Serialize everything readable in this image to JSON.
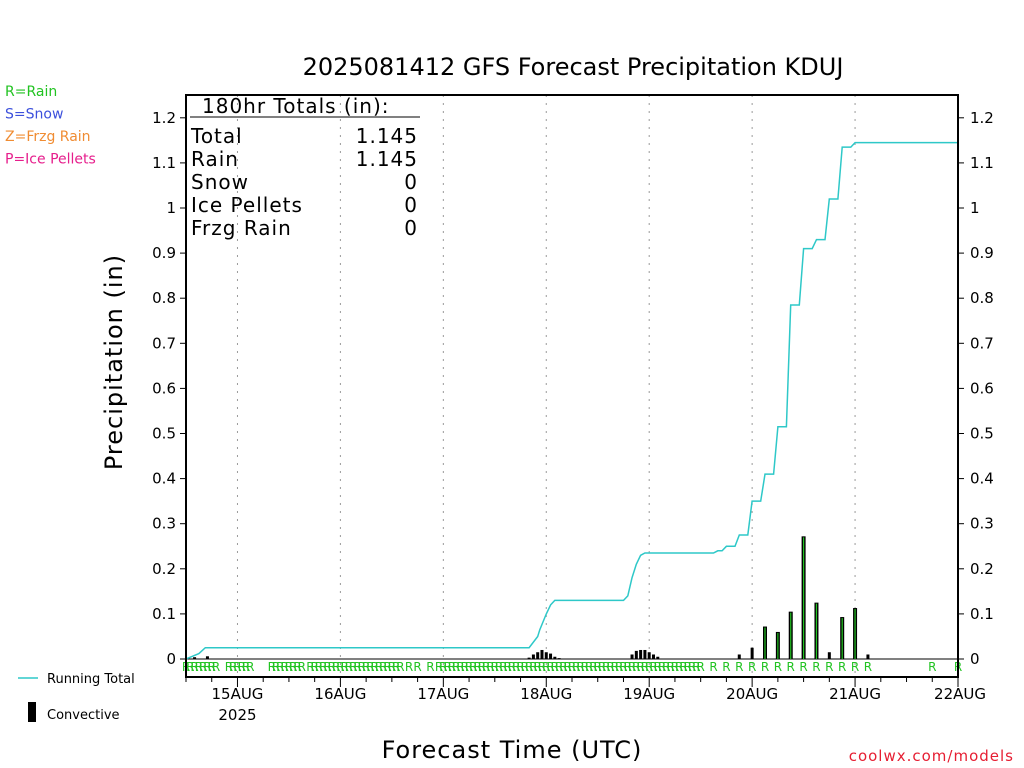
{
  "chart_data": {
    "type": "bar",
    "title": "2025081412 GFS Forecast Precipitation KDUJ",
    "xlabel": "Forecast Time (UTC)",
    "ylabel": "Precipitation (in)",
    "ylim": [
      0,
      1.25
    ],
    "y_ticks": [
      "0",
      "0.1",
      "0.2",
      "0.3",
      "0.4",
      "0.5",
      "0.6",
      "0.7",
      "0.8",
      "0.9",
      "1",
      "1.1",
      "1.2"
    ],
    "x_range_hours": [
      0,
      180
    ],
    "x_ticks": [
      {
        "hour": 12,
        "label": "15AUG",
        "sublabel": "2025"
      },
      {
        "hour": 36,
        "label": "16AUG"
      },
      {
        "hour": 60,
        "label": "17AUG"
      },
      {
        "hour": 84,
        "label": "18AUG"
      },
      {
        "hour": 108,
        "label": "19AUG"
      },
      {
        "hour": 132,
        "label": "20AUG"
      },
      {
        "hour": 156,
        "label": "21AUG"
      },
      {
        "hour": 180,
        "label": "22AUG"
      }
    ],
    "grid": "vertical-dotted",
    "legend_left": [
      {
        "text": "R=Rain",
        "color": "#22c322"
      },
      {
        "text": "S=Snow",
        "color": "#3c50dc"
      },
      {
        "text": "Z=Frzg Rain",
        "color": "#f08c32"
      },
      {
        "text": "P=Ice Pellets",
        "color": "#e61e8c"
      }
    ],
    "legend_bottom": [
      {
        "text": "Running Total",
        "color": "#2ec8c8",
        "kind": "line"
      },
      {
        "text": "Convective",
        "color": "#000000",
        "kind": "bar"
      }
    ],
    "totals_box": {
      "header": "180hr Totals (in):",
      "rows": [
        {
          "label": "Total",
          "value": "1.145"
        },
        {
          "label": "Rain",
          "value": "1.145"
        },
        {
          "label": "Snow",
          "value": "0"
        },
        {
          "label": "Ice Pellets",
          "value": "0"
        },
        {
          "label": "Frzg Rain",
          "value": "0"
        }
      ]
    },
    "series": [
      {
        "name": "Running Total",
        "points": [
          [
            0,
            0
          ],
          [
            1,
            0.004
          ],
          [
            3,
            0.012
          ],
          [
            4.5,
            0.025
          ],
          [
            80,
            0.025
          ],
          [
            82,
            0.05
          ],
          [
            82.5,
            0.065
          ],
          [
            84,
            0.1
          ],
          [
            85,
            0.12
          ],
          [
            86,
            0.13
          ],
          [
            102,
            0.13
          ],
          [
            103,
            0.14
          ],
          [
            104,
            0.18
          ],
          [
            105,
            0.21
          ],
          [
            106,
            0.23
          ],
          [
            107,
            0.235
          ],
          [
            123,
            0.235
          ],
          [
            124,
            0.24
          ],
          [
            125,
            0.24
          ],
          [
            126,
            0.25
          ],
          [
            128,
            0.25
          ],
          [
            129,
            0.275
          ],
          [
            131,
            0.275
          ],
          [
            132,
            0.35
          ],
          [
            134,
            0.35
          ],
          [
            135,
            0.41
          ],
          [
            137,
            0.41
          ],
          [
            138,
            0.515
          ],
          [
            140,
            0.515
          ],
          [
            141,
            0.785
          ],
          [
            143,
            0.785
          ],
          [
            144,
            0.91
          ],
          [
            146,
            0.91
          ],
          [
            147,
            0.93
          ],
          [
            149,
            0.93
          ],
          [
            150,
            1.02
          ],
          [
            152,
            1.02
          ],
          [
            153,
            1.135
          ],
          [
            155,
            1.135
          ],
          [
            156,
            1.145
          ],
          [
            180,
            1.145
          ]
        ]
      },
      {
        "name": "Precipitation",
        "bars": [
          [
            2,
            0.004
          ],
          [
            5,
            0.006
          ],
          [
            80,
            0.003
          ],
          [
            81,
            0.01
          ],
          [
            82,
            0.015
          ],
          [
            83,
            0.02
          ],
          [
            84,
            0.015
          ],
          [
            85,
            0.012
          ],
          [
            86,
            0.005
          ],
          [
            87,
            0.002
          ],
          [
            104,
            0.01
          ],
          [
            105,
            0.018
          ],
          [
            106,
            0.02
          ],
          [
            107,
            0.02
          ],
          [
            108,
            0.015
          ],
          [
            109,
            0.01
          ],
          [
            110,
            0.005
          ],
          [
            129,
            0.01
          ],
          [
            132,
            0.025
          ],
          [
            135,
            0.072
          ],
          [
            138,
            0.06
          ],
          [
            141,
            0.105
          ],
          [
            144,
            0.272
          ],
          [
            147,
            0.125
          ],
          [
            150,
            0.015
          ],
          [
            153,
            0.093
          ],
          [
            156,
            0.113
          ],
          [
            159,
            0.01
          ]
        ]
      }
    ],
    "ptype_marker": "R",
    "ptype_marks": [
      0,
      1,
      2,
      3,
      4,
      5,
      6,
      7,
      10,
      11,
      12,
      13,
      14,
      15,
      20,
      21,
      22,
      23,
      24,
      25,
      26,
      27,
      29,
      30,
      31,
      32,
      33,
      34,
      35,
      36,
      37,
      38,
      39,
      40,
      41,
      42,
      43,
      44,
      45,
      46,
      47,
      48,
      49,
      50,
      52,
      54,
      57,
      59,
      60,
      61,
      62,
      63,
      64,
      65,
      66,
      67,
      68,
      69,
      70,
      71,
      72,
      73,
      74,
      75,
      76,
      77,
      78,
      79,
      80,
      81,
      82,
      83,
      84,
      85,
      86,
      87,
      88,
      89,
      90,
      91,
      92,
      93,
      94,
      95,
      96,
      97,
      98,
      99,
      100,
      101,
      102,
      103,
      104,
      105,
      106,
      107,
      108,
      109,
      110,
      111,
      112,
      113,
      114,
      115,
      116,
      117,
      118,
      119,
      120,
      123,
      126,
      129,
      132,
      135,
      138,
      141,
      144,
      147,
      150,
      153,
      156,
      159,
      174,
      180
    ]
  },
  "credit": "coolwx.com/models"
}
